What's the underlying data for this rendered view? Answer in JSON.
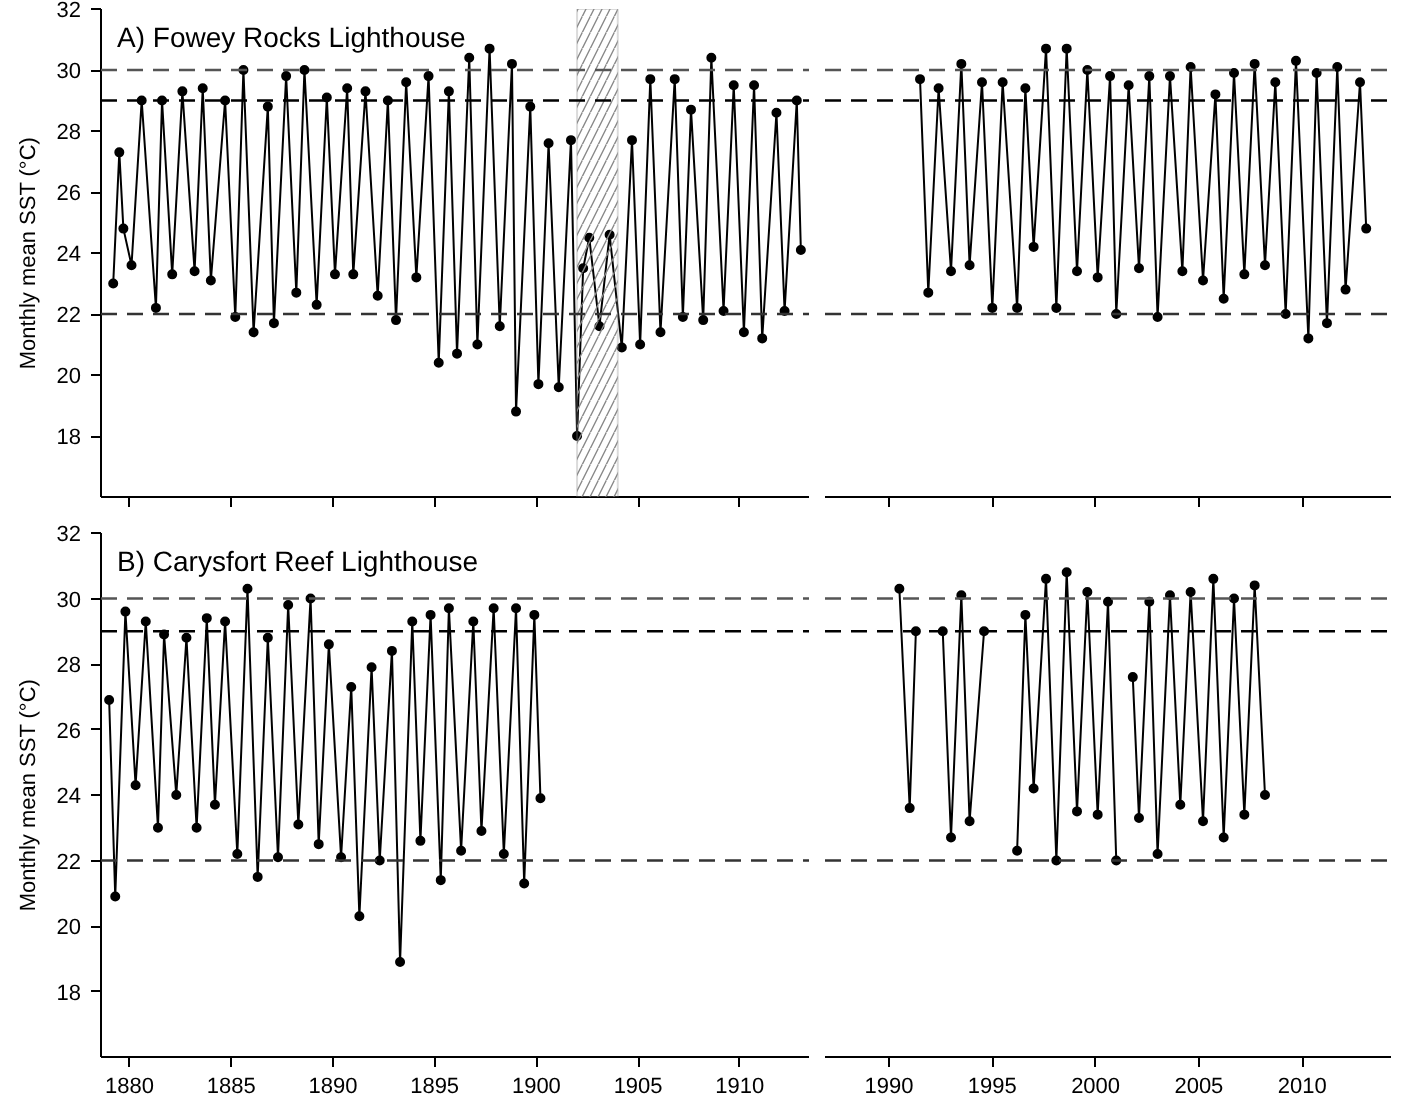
{
  "chart_data": [
    {
      "type": "line",
      "title": "A) Fowey Rocks Lighthouse",
      "ylabel": "Monthly mean SST (°C)",
      "marker": "circle",
      "line_style": "solid",
      "tick_labels": "y",
      "x": [
        1879.2,
        1879.5,
        1879.7,
        1880.1,
        1880.6,
        1881.3,
        1881.6,
        1882.1,
        1882.6,
        1883.2,
        1883.6,
        1884.0,
        1884.7,
        1885.2,
        1885.6,
        1886.1,
        1886.8,
        1887.1,
        1887.7,
        1888.2,
        1888.6,
        1889.2,
        1889.7,
        1890.1,
        1890.7,
        1891.0,
        1891.6,
        1892.2,
        1892.7,
        1893.1,
        1893.6,
        1894.1,
        1894.7,
        1895.2,
        1895.7,
        1896.1,
        1896.7,
        1897.1,
        1897.7,
        1898.2,
        1898.8,
        1899.0,
        1899.7,
        1900.1,
        1900.6,
        1901.1,
        1901.7,
        1902.0,
        1902.3,
        1902.6,
        1903.1,
        1903.6,
        1904.2,
        1904.7,
        1905.1,
        1905.6,
        1906.1,
        1906.8,
        1907.2,
        1907.6,
        1908.2,
        1908.6,
        1909.2,
        1909.7,
        1910.2,
        1910.7,
        1911.1,
        1911.8,
        1912.2,
        1912.8,
        1913.0
      ],
      "series": [
        {
          "color": "#000000",
          "values": [
            23.0,
            27.3,
            24.8,
            23.6,
            29.0,
            22.2,
            29.0,
            23.3,
            29.3,
            23.4,
            29.4,
            23.1,
            29.0,
            21.9,
            30.0,
            21.4,
            28.8,
            21.7,
            29.8,
            22.7,
            30.0,
            22.3,
            29.1,
            23.3,
            29.4,
            23.3,
            29.3,
            22.6,
            29.0,
            21.8,
            29.6,
            23.2,
            29.8,
            20.4,
            29.3,
            20.7,
            30.4,
            21.0,
            30.7,
            21.6,
            30.2,
            18.8,
            28.8,
            19.7,
            27.6,
            19.6,
            27.7,
            18.0,
            23.5,
            24.5,
            21.6,
            24.6,
            20.9,
            27.7,
            21.0,
            29.7,
            21.4,
            29.7,
            21.9,
            28.7,
            21.8,
            30.4,
            22.1,
            29.5,
            21.4,
            29.5,
            21.2,
            28.6,
            22.1,
            29.0,
            24.1
          ]
        }
      ],
      "xlim": [
        1878.6,
        1913.4
      ],
      "xticks": [
        1880,
        1885,
        1890,
        1895,
        1900,
        1905,
        1910
      ],
      "ylim": [
        16,
        32
      ],
      "yticks": [
        18,
        20,
        22,
        24,
        26,
        28,
        30,
        32
      ],
      "ref_lines": [
        {
          "axis": "y",
          "value": 30,
          "color": "#555555",
          "line_style": "dashed"
        },
        {
          "axis": "y",
          "value": 29,
          "color": "#000000",
          "line_style": "dashed"
        },
        {
          "axis": "y",
          "value": 22,
          "color": "#333333",
          "line_style": "dashed"
        }
      ],
      "bands": [
        {
          "axis": "x",
          "from": 1902,
          "to": 1904,
          "color": "#888888"
        }
      ]
    },
    {
      "type": "line",
      "marker": "circle",
      "line_style": "solid",
      "tick_labels": false,
      "x": [
        1991.5,
        1991.9,
        1992.4,
        1993.0,
        1993.5,
        1993.9,
        1994.5,
        1995.0,
        1995.5,
        1996.2,
        1996.6,
        1997.0,
        1997.6,
        1998.1,
        1998.6,
        1999.1,
        1999.6,
        2000.1,
        2000.7,
        2001.0,
        2001.6,
        2002.1,
        2002.6,
        2003.0,
        2003.6,
        2004.2,
        2004.6,
        2005.2,
        2005.8,
        2006.2,
        2006.7,
        2007.2,
        2007.7,
        2008.2,
        2008.7,
        2009.2,
        2009.7,
        2010.3,
        2010.7,
        2011.2,
        2011.7,
        2012.1,
        2012.8,
        2013.1
      ],
      "series": [
        {
          "color": "#000000",
          "values": [
            29.7,
            22.7,
            29.4,
            23.4,
            30.2,
            23.6,
            29.6,
            22.2,
            29.6,
            22.2,
            29.4,
            24.2,
            30.7,
            22.2,
            30.7,
            23.4,
            30.0,
            23.2,
            29.8,
            22.0,
            29.5,
            23.5,
            29.8,
            21.9,
            29.8,
            23.4,
            30.1,
            23.1,
            29.2,
            22.5,
            29.9,
            23.3,
            30.2,
            23.6,
            29.6,
            22.0,
            30.3,
            21.2,
            29.9,
            21.7,
            30.1,
            22.8,
            29.6,
            24.8
          ]
        }
      ],
      "xlim": [
        1986.9,
        2014.3
      ],
      "xticks": [
        1990,
        1995,
        2000,
        2005,
        2010
      ],
      "ylim": [
        16,
        32
      ],
      "ref_lines": [
        {
          "axis": "y",
          "value": 30,
          "color": "#555555",
          "line_style": "dashed"
        },
        {
          "axis": "y",
          "value": 29,
          "color": "#000000",
          "line_style": "dashed"
        },
        {
          "axis": "y",
          "value": 22,
          "color": "#333333",
          "line_style": "dashed"
        }
      ]
    },
    {
      "type": "line",
      "title": "B) Carysfort Reef Lighthouse",
      "ylabel": "Monthly mean SST (°C)",
      "marker": "circle",
      "line_style": "solid",
      "x": [
        1879.0,
        1879.3,
        1879.8,
        1880.3,
        1880.8,
        1881.4,
        1881.7,
        1882.3,
        1882.8,
        1883.3,
        1883.8,
        1884.2,
        1884.7,
        1885.3,
        1885.8,
        1886.3,
        1886.8,
        1887.3,
        1887.8,
        1888.3,
        1888.9,
        1889.3,
        1889.8,
        1890.4,
        1890.9,
        1891.3,
        1891.9,
        1892.3,
        1892.9,
        1893.3,
        1893.9,
        1894.3,
        1894.8,
        1895.3,
        1895.7,
        1896.3,
        1896.9,
        1897.3,
        1897.9,
        1898.4,
        1899.0,
        1899.4,
        1899.9,
        1900.2
      ],
      "series": [
        {
          "color": "#000000",
          "values": [
            26.9,
            20.9,
            29.6,
            24.3,
            29.3,
            23.0,
            28.9,
            24.0,
            28.8,
            23.0,
            29.4,
            23.7,
            29.3,
            22.2,
            30.3,
            21.5,
            28.8,
            22.1,
            29.8,
            23.1,
            30.0,
            22.5,
            28.6,
            22.1,
            27.3,
            20.3,
            27.9,
            22.0,
            28.4,
            18.9,
            29.3,
            22.6,
            29.5,
            21.4,
            29.7,
            22.3,
            29.3,
            22.9,
            29.7,
            22.2,
            29.7,
            21.3,
            29.5,
            23.9
          ]
        }
      ],
      "xlim": [
        1878.6,
        1913.4
      ],
      "xticks": [
        1880,
        1885,
        1890,
        1895,
        1900,
        1905,
        1910
      ],
      "ylim": [
        16,
        32
      ],
      "yticks": [
        18,
        20,
        22,
        24,
        26,
        28,
        30,
        32
      ],
      "ref_lines": [
        {
          "axis": "y",
          "value": 30,
          "color": "#555555",
          "line_style": "dashed"
        },
        {
          "axis": "y",
          "value": 29,
          "color": "#000000",
          "line_style": "dashed"
        },
        {
          "axis": "y",
          "value": 22,
          "color": "#333333",
          "line_style": "dashed"
        }
      ]
    },
    {
      "type": "line",
      "marker": "circle",
      "line_style": "solid",
      "tick_labels": "x",
      "x": [
        1990.5,
        1991.0,
        1991.3,
        1992.0,
        1992.6,
        1993.0,
        1993.5,
        1993.9,
        1994.6,
        1995.4,
        1996.2,
        1996.6,
        1997.0,
        1997.6,
        1998.1,
        1998.6,
        1999.1,
        1999.6,
        2000.1,
        2000.6,
        2001.0,
        2001.4,
        2001.8,
        2002.1,
        2002.6,
        2003.0,
        2003.6,
        2004.1,
        2004.6,
        2005.2,
        2005.7,
        2006.2,
        2006.7,
        2007.2,
        2007.7,
        2008.2
      ],
      "series": [
        {
          "color": "#000000",
          "values": [
            30.3,
            23.6,
            29.0,
            null,
            29.0,
            22.7,
            30.1,
            23.2,
            29.0,
            null,
            22.3,
            29.5,
            24.2,
            30.6,
            22.0,
            30.8,
            23.5,
            30.2,
            23.4,
            29.9,
            22.0,
            null,
            27.6,
            23.3,
            29.9,
            22.2,
            30.1,
            23.7,
            30.2,
            23.2,
            30.6,
            22.7,
            30.0,
            23.4,
            30.4,
            24.0
          ]
        }
      ],
      "xlim": [
        1986.9,
        2014.3
      ],
      "xticks": [
        1990,
        1995,
        2000,
        2005,
        2010
      ],
      "ylim": [
        16,
        32
      ],
      "ref_lines": [
        {
          "axis": "y",
          "value": 30,
          "color": "#555555",
          "line_style": "dashed"
        },
        {
          "axis": "y",
          "value": 29,
          "color": "#000000",
          "line_style": "dashed"
        },
        {
          "axis": "y",
          "value": 22,
          "color": "#333333",
          "line_style": "dashed"
        }
      ]
    }
  ]
}
